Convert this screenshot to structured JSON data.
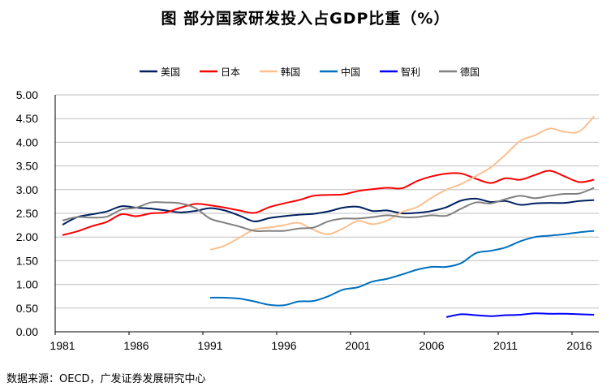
{
  "chart_data": {
    "type": "line",
    "title": "图  部分国家研发投入占GDP比重（%）",
    "source": "数据来源：OECD，广发证券发展研究中心",
    "xlabel": "",
    "ylabel": "",
    "ylim": [
      0,
      5
    ],
    "yticks": [
      "0.00",
      "0.50",
      "1.00",
      "1.50",
      "2.00",
      "2.50",
      "3.00",
      "3.50",
      "4.00",
      "4.50",
      "5.00"
    ],
    "xticks": [
      "1981",
      "1986",
      "1991",
      "1996",
      "2001",
      "2006",
      "2011",
      "2016"
    ],
    "x_start": 1981,
    "x_end": 2017,
    "grid": "horizontal",
    "legend_position": "top",
    "series": [
      {
        "name": "美国",
        "color": "#002060",
        "start": 1981,
        "values": [
          2.26,
          2.42,
          2.48,
          2.54,
          2.65,
          2.62,
          2.6,
          2.56,
          2.52,
          2.55,
          2.61,
          2.56,
          2.45,
          2.33,
          2.4,
          2.44,
          2.47,
          2.49,
          2.54,
          2.62,
          2.64,
          2.55,
          2.56,
          2.5,
          2.51,
          2.55,
          2.63,
          2.77,
          2.81,
          2.74,
          2.76,
          2.68,
          2.71,
          2.72,
          2.72,
          2.76,
          2.78
        ]
      },
      {
        "name": "日本",
        "color": "#FF0000",
        "start": 1981,
        "values": [
          2.04,
          2.12,
          2.23,
          2.32,
          2.48,
          2.44,
          2.5,
          2.52,
          2.62,
          2.7,
          2.67,
          2.62,
          2.56,
          2.51,
          2.63,
          2.71,
          2.78,
          2.87,
          2.89,
          2.9,
          2.97,
          3.01,
          3.04,
          3.03,
          3.18,
          3.28,
          3.34,
          3.34,
          3.23,
          3.14,
          3.24,
          3.21,
          3.31,
          3.4,
          3.28,
          3.16,
          3.21
        ]
      },
      {
        "name": "韩国",
        "color": "#FAC090",
        "start": 1991,
        "values": [
          1.73,
          1.82,
          1.99,
          2.16,
          2.2,
          2.25,
          2.3,
          2.15,
          2.06,
          2.18,
          2.34,
          2.27,
          2.35,
          2.53,
          2.63,
          2.83,
          3.0,
          3.12,
          3.29,
          3.47,
          3.74,
          4.03,
          4.15,
          4.29,
          4.22,
          4.23,
          4.55
        ]
      },
      {
        "name": "中国",
        "color": "#0070C0",
        "start": 1991,
        "values": [
          0.72,
          0.72,
          0.7,
          0.64,
          0.57,
          0.56,
          0.64,
          0.65,
          0.75,
          0.89,
          0.94,
          1.06,
          1.12,
          1.21,
          1.31,
          1.37,
          1.37,
          1.45,
          1.66,
          1.71,
          1.78,
          1.91,
          2.0,
          2.03,
          2.06,
          2.1,
          2.13
        ]
      },
      {
        "name": "智利",
        "color": "#0000FF",
        "start": 2007,
        "values": [
          0.31,
          0.37,
          0.35,
          0.33,
          0.35,
          0.36,
          0.39,
          0.38,
          0.38,
          0.37,
          0.36
        ]
      },
      {
        "name": "德国",
        "color": "#808080",
        "start": 1981,
        "values": [
          2.35,
          2.42,
          2.41,
          2.43,
          2.58,
          2.62,
          2.73,
          2.73,
          2.71,
          2.61,
          2.39,
          2.3,
          2.22,
          2.13,
          2.13,
          2.13,
          2.18,
          2.2,
          2.33,
          2.39,
          2.39,
          2.42,
          2.46,
          2.42,
          2.42,
          2.46,
          2.45,
          2.6,
          2.73,
          2.71,
          2.8,
          2.87,
          2.82,
          2.87,
          2.91,
          2.92,
          3.04
        ]
      }
    ]
  }
}
